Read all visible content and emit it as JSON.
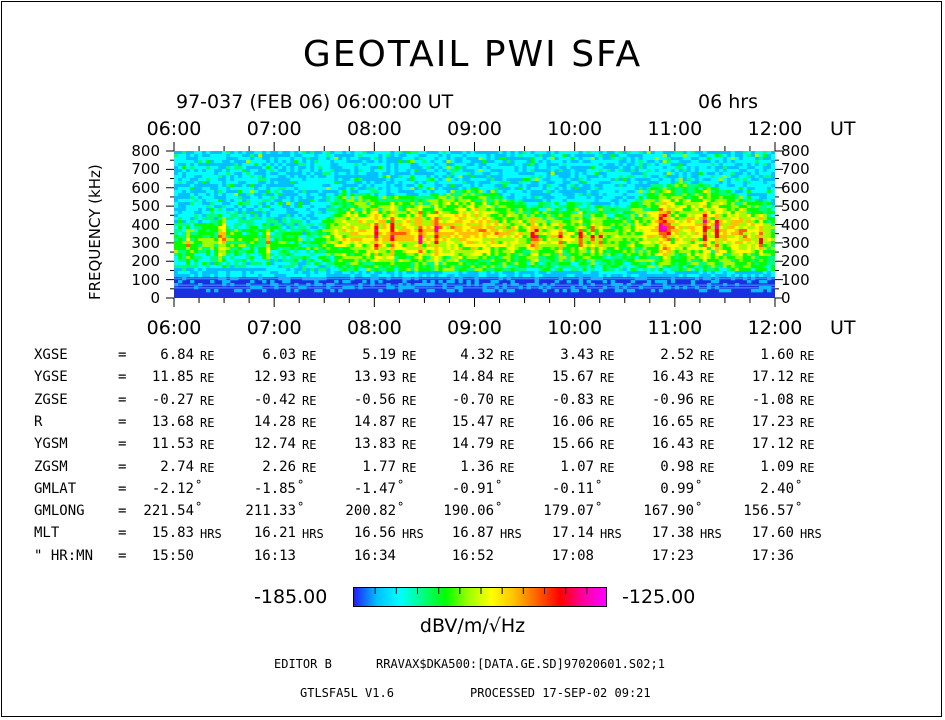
{
  "chart_data": {
    "type": "heatmap",
    "title": "GEOTAIL PWI SFA",
    "subtitle": "97-037 (FEB 06) 06:00:00 UT",
    "duration": "06 hrs",
    "x_tick_labels": [
      "06:00",
      "07:00",
      "08:00",
      "09:00",
      "10:00",
      "11:00",
      "12:00"
    ],
    "x_unit": "UT",
    "x_range_hours": [
      6,
      12
    ],
    "ylabel": "FREQUENCY (kHz)",
    "y_tick_labels": [
      "800",
      "700",
      "600",
      "500",
      "400",
      "300",
      "200",
      "100",
      "0"
    ],
    "ylim": [
      0,
      800
    ],
    "y_ticks": [
      800,
      700,
      600,
      500,
      400,
      300,
      200,
      100,
      0
    ],
    "colorbar": {
      "min_label": "-185.00",
      "max_label": "-125.00",
      "unit": "dBV/m/√Hz",
      "colors": [
        "#2020ff",
        "#00c0ff",
        "#00ffff",
        "#00ff80",
        "#00ff00",
        "#a0ff00",
        "#ffff00",
        "#ffc000",
        "#ff6000",
        "#ff0000",
        "#ff00a0",
        "#ff00ff"
      ]
    },
    "intensity_profile": [
      {
        "t": 6.0,
        "lo": 150,
        "hi": 430,
        "level": 0.38
      },
      {
        "t": 6.5,
        "lo": 160,
        "hi": 480,
        "level": 0.4
      },
      {
        "t": 7.0,
        "lo": 160,
        "hi": 450,
        "level": 0.36
      },
      {
        "t": 7.4,
        "lo": 150,
        "hi": 420,
        "level": 0.33
      },
      {
        "t": 7.7,
        "lo": 150,
        "hi": 580,
        "level": 0.55
      },
      {
        "t": 8.0,
        "lo": 140,
        "hi": 560,
        "level": 0.58
      },
      {
        "t": 8.5,
        "lo": 140,
        "hi": 560,
        "level": 0.6
      },
      {
        "t": 9.0,
        "lo": 150,
        "hi": 600,
        "level": 0.62
      },
      {
        "t": 9.5,
        "lo": 150,
        "hi": 520,
        "level": 0.52
      },
      {
        "t": 10.0,
        "lo": 150,
        "hi": 520,
        "level": 0.5
      },
      {
        "t": 10.5,
        "lo": 150,
        "hi": 500,
        "level": 0.45
      },
      {
        "t": 10.8,
        "lo": 150,
        "hi": 620,
        "level": 0.56
      },
      {
        "t": 11.3,
        "lo": 150,
        "hi": 620,
        "level": 0.58
      },
      {
        "t": 11.7,
        "lo": 150,
        "hi": 560,
        "level": 0.6
      },
      {
        "t": 12.0,
        "lo": 150,
        "hi": 500,
        "level": 0.45
      }
    ]
  },
  "ephemeris": {
    "rows": [
      {
        "label": "XGSE",
        "values": [
          "6.84",
          "6.03",
          "5.19",
          "4.32",
          "3.43",
          "2.52",
          "1.60"
        ],
        "unit": "RE"
      },
      {
        "label": "YGSE",
        "values": [
          "11.85",
          "12.93",
          "13.93",
          "14.84",
          "15.67",
          "16.43",
          "17.12"
        ],
        "unit": "RE"
      },
      {
        "label": "ZGSE",
        "values": [
          "-0.27",
          "-0.42",
          "-0.56",
          "-0.70",
          "-0.83",
          "-0.96",
          "-1.08"
        ],
        "unit": "RE"
      },
      {
        "label": "R",
        "values": [
          "13.68",
          "14.28",
          "14.87",
          "15.47",
          "16.06",
          "16.65",
          "17.23"
        ],
        "unit": "RE"
      },
      {
        "label": "YGSM",
        "values": [
          "11.53",
          "12.74",
          "13.83",
          "14.79",
          "15.66",
          "16.43",
          "17.12"
        ],
        "unit": "RE"
      },
      {
        "label": "ZGSM",
        "values": [
          "2.74",
          "2.26",
          "1.77",
          "1.36",
          "1.07",
          "0.98",
          "1.09"
        ],
        "unit": "RE"
      },
      {
        "label": "GMLAT",
        "values": [
          "-2.12",
          "-1.85",
          "-1.47",
          "-0.91",
          "-0.11",
          "0.99",
          "2.40"
        ],
        "unit": "°"
      },
      {
        "label": "GMLONG",
        "values": [
          "221.54",
          "211.33",
          "200.82",
          "190.06",
          "179.07",
          "167.90",
          "156.57"
        ],
        "unit": "°"
      },
      {
        "label": "MLT",
        "values": [
          "15.83",
          "16.21",
          "16.56",
          "16.87",
          "17.14",
          "17.38",
          "17.60"
        ],
        "unit": "HRS"
      },
      {
        "label": "\" HR:MN",
        "values": [
          "15:50",
          "16:13",
          "16:34",
          "16:52",
          "17:08",
          "17:23",
          "17:36"
        ],
        "unit": ""
      }
    ],
    "equals": "="
  },
  "footer": {
    "editor": "EDITOR B",
    "file": "RRAVAX$DKA500:[DATA.GE.SD]97020601.S02;1",
    "program": "GTLSFA5L V1.6",
    "processed": "PROCESSED 17-SEP-02  09:21"
  }
}
